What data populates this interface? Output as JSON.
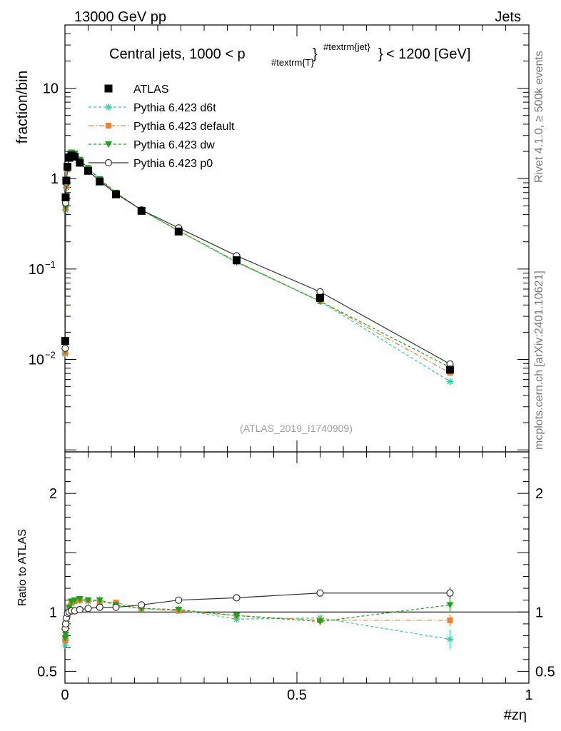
{
  "header": {
    "left": "13000 GeV pp",
    "right": "Jets"
  },
  "side_labels": {
    "rivet": "Rivet 4.1.0, ≥ 500k events",
    "source": "mcplots.cern.ch [arXiv:2401.10621]"
  },
  "chart_data": [
    {
      "type": "line",
      "panel": "main",
      "title": "Central jets, 1000 < p",
      "title_sub": "#textrm{T}",
      "title_sup": "#textrm{jet}",
      "title_post": "< 1200 [GeV]",
      "title_brace_open": "}",
      "title_brace_close": "}",
      "ylabel": "fraction/bin",
      "xlabel": "#zη",
      "watermark": "(ATLAS_2019_I1740909)",
      "yscale": "log",
      "xlim": [
        0,
        1
      ],
      "ylim": [
        0.00095,
        50
      ],
      "y_ticks": [
        {
          "value": 10,
          "label": "10"
        },
        {
          "value": 1,
          "label": "1"
        },
        {
          "value": 0.1,
          "label": "10",
          "exp": "−1"
        },
        {
          "value": 0.01,
          "label": "10",
          "exp": "−2"
        }
      ],
      "x_ticks": [
        {
          "value": 0,
          "label": "0"
        },
        {
          "value": 0.5,
          "label": "0.5"
        },
        {
          "value": 1,
          "label": "1"
        }
      ],
      "legend": [
        {
          "label": "ATLAS",
          "color": "#000000",
          "marker": "square",
          "dash": "none"
        },
        {
          "label": "Pythia 6.423 d6t",
          "color": "#1fd3a0",
          "marker": "star",
          "dash": "4,3"
        },
        {
          "label": "Pythia 6.423 default",
          "color": "#f08030",
          "marker": "square-small",
          "dash": "7,3,2,3"
        },
        {
          "label": "Pythia 6.423 dw",
          "color": "#19a619",
          "marker": "triangle-down",
          "dash": "4,3"
        },
        {
          "label": "Pythia 6.423 p0",
          "color": "#333333",
          "marker": "circle",
          "dash": ""
        }
      ],
      "x": [
        0.0005,
        0.0015,
        0.003,
        0.0055,
        0.009,
        0.014,
        0.021,
        0.032,
        0.05,
        0.075,
        0.11,
        0.165,
        0.245,
        0.37,
        0.55,
        0.83
      ],
      "series": [
        {
          "name": "ATLAS",
          "values": [
            0.016,
            0.62,
            0.95,
            1.35,
            1.7,
            1.8,
            1.75,
            1.5,
            1.22,
            0.93,
            0.67,
            0.44,
            0.26,
            0.125,
            0.048,
            0.0077
          ]
        },
        {
          "name": "Pythia 6.423 d6t",
          "values": [
            0.0115,
            0.45,
            0.8,
            1.25,
            1.7,
            1.92,
            1.86,
            1.6,
            1.3,
            0.98,
            0.69,
            0.45,
            0.265,
            0.118,
            0.044,
            0.0057
          ]
        },
        {
          "name": "Pythia 6.423 default",
          "values": [
            0.0118,
            0.47,
            0.82,
            1.27,
            1.73,
            1.93,
            1.87,
            1.6,
            1.3,
            0.98,
            0.69,
            0.45,
            0.265,
            0.121,
            0.044,
            0.0071
          ]
        },
        {
          "name": "Pythia 6.423 dw",
          "values": [
            0.0125,
            0.48,
            0.85,
            1.3,
            1.77,
            1.95,
            1.9,
            1.62,
            1.31,
            0.99,
            0.7,
            0.45,
            0.265,
            0.12,
            0.044,
            0.0082
          ]
        },
        {
          "name": "Pythia 6.423 p0",
          "values": [
            0.0133,
            0.54,
            0.9,
            1.32,
            1.75,
            1.82,
            1.76,
            1.5,
            1.22,
            0.94,
            0.68,
            0.45,
            0.285,
            0.14,
            0.056,
            0.0089
          ]
        }
      ]
    },
    {
      "type": "line",
      "panel": "ratio",
      "ylabel": "Ratio to ATLAS",
      "ylim": [
        0.4,
        2.35
      ],
      "y_ticks": [
        {
          "value": 2,
          "label": "2"
        },
        {
          "value": 1,
          "label": "1"
        },
        {
          "value": 0.5,
          "label": "0.5"
        }
      ],
      "reference": 1,
      "x": [
        0.0005,
        0.0015,
        0.003,
        0.0055,
        0.009,
        0.014,
        0.021,
        0.032,
        0.05,
        0.075,
        0.11,
        0.165,
        0.245,
        0.37,
        0.55,
        0.83
      ],
      "series": [
        {
          "name": "Pythia 6.423 d6t",
          "values": [
            0.72,
            0.76,
            0.86,
            0.96,
            1.02,
            1.07,
            1.09,
            1.1,
            1.09,
            1.1,
            1.06,
            1.03,
            1.02,
            0.94,
            0.95,
            0.77
          ],
          "errors": [
            0,
            0,
            0,
            0,
            0,
            0,
            0,
            0,
            0,
            0,
            0,
            0,
            0,
            0.02,
            0.03,
            0.08
          ]
        },
        {
          "name": "Pythia 6.423 default",
          "values": [
            0.76,
            0.79,
            0.88,
            0.97,
            1.03,
            1.08,
            1.09,
            1.1,
            1.1,
            1.08,
            1.08,
            1.03,
            1.01,
            0.97,
            0.93,
            0.93
          ],
          "errors": [
            0,
            0,
            0,
            0,
            0,
            0,
            0,
            0,
            0,
            0,
            0,
            0,
            0,
            0.02,
            0.03,
            0.05
          ]
        },
        {
          "name": "Pythia 6.423 dw",
          "values": [
            0.78,
            0.81,
            0.9,
            0.98,
            1.04,
            1.09,
            1.1,
            1.11,
            1.1,
            1.1,
            1.06,
            1.03,
            1.02,
            0.97,
            0.92,
            1.06
          ],
          "errors": [
            0,
            0,
            0,
            0,
            0,
            0,
            0,
            0,
            0,
            0,
            0,
            0,
            0,
            0.02,
            0.03,
            0.06
          ]
        },
        {
          "name": "Pythia 6.423 p0",
          "values": [
            0.86,
            0.9,
            0.95,
            0.99,
            1.0,
            1.01,
            1.01,
            1.02,
            1.03,
            1.04,
            1.04,
            1.06,
            1.1,
            1.12,
            1.16,
            1.16
          ],
          "errors": [
            0,
            0,
            0,
            0,
            0,
            0,
            0,
            0,
            0,
            0,
            0,
            0,
            0,
            0.02,
            0.02,
            0.05
          ]
        }
      ]
    }
  ]
}
